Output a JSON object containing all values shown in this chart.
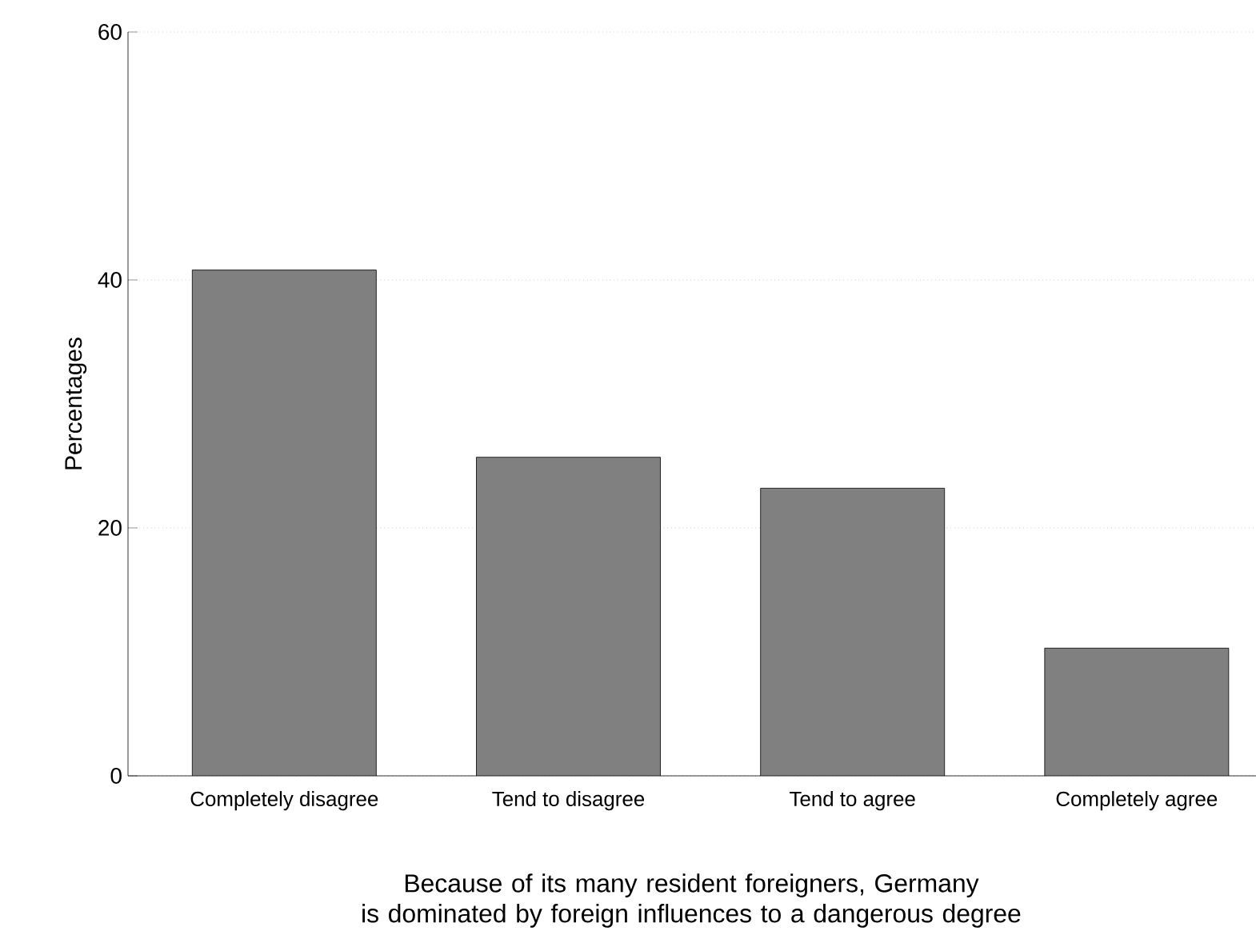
{
  "chart_data": {
    "type": "bar",
    "xlabel": "Because of its many resident foreigners, Germany\nis dominated by foreign influences to a dangerous degree",
    "ylabel": "Percentages",
    "categories": [
      "Completely disagree",
      "Tend to disagree",
      "Tend to agree",
      "Completely agree"
    ],
    "values": [
      40.8,
      25.7,
      23.2,
      10.3
    ],
    "color": "#808080",
    "ylim": [
      0,
      60
    ],
    "yticks": [
      0,
      20,
      40,
      60
    ],
    "grid": "y"
  }
}
